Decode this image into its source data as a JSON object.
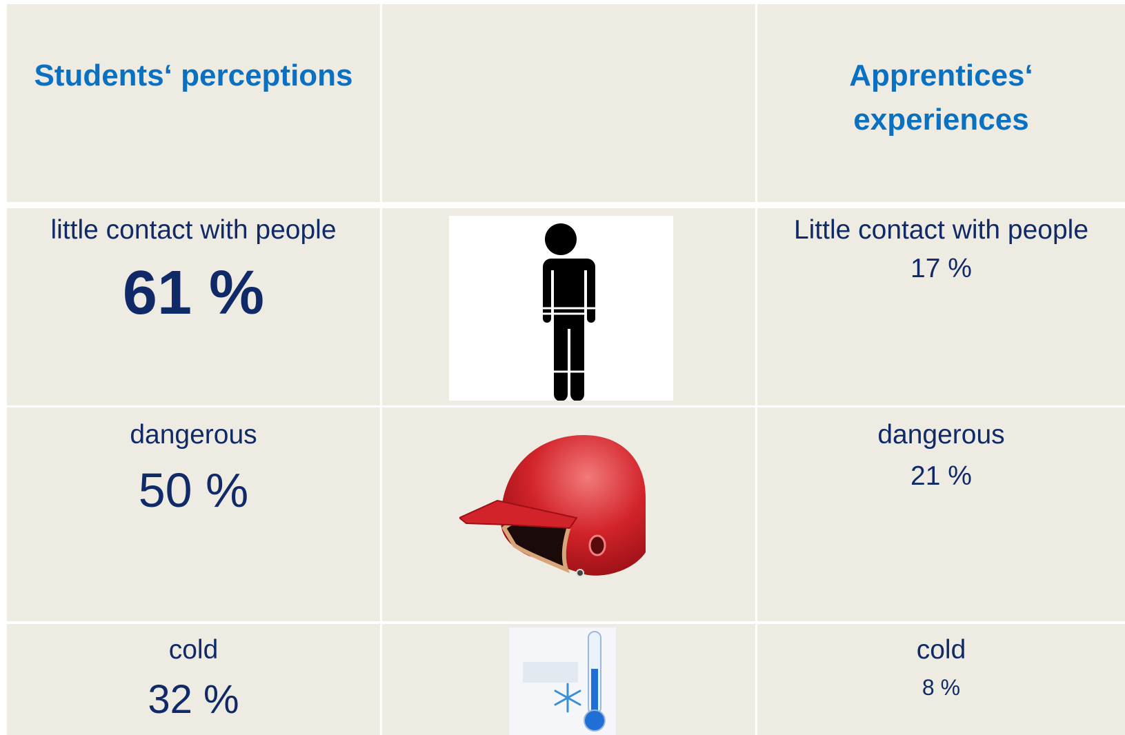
{
  "header": {
    "left": "Students‘ perceptions",
    "right": "Apprentices‘ experiences"
  },
  "rows": [
    {
      "left_label": "little contact with people",
      "left_value": "61 %",
      "right_label": "Little contact with people",
      "right_value": "17 %"
    },
    {
      "left_label": "dangerous",
      "left_value": "50 %",
      "right_label": "dangerous",
      "right_value": "21 %"
    },
    {
      "left_label": "cold",
      "left_value": "32 %",
      "right_label": "cold",
      "right_value": "8 %"
    }
  ]
}
